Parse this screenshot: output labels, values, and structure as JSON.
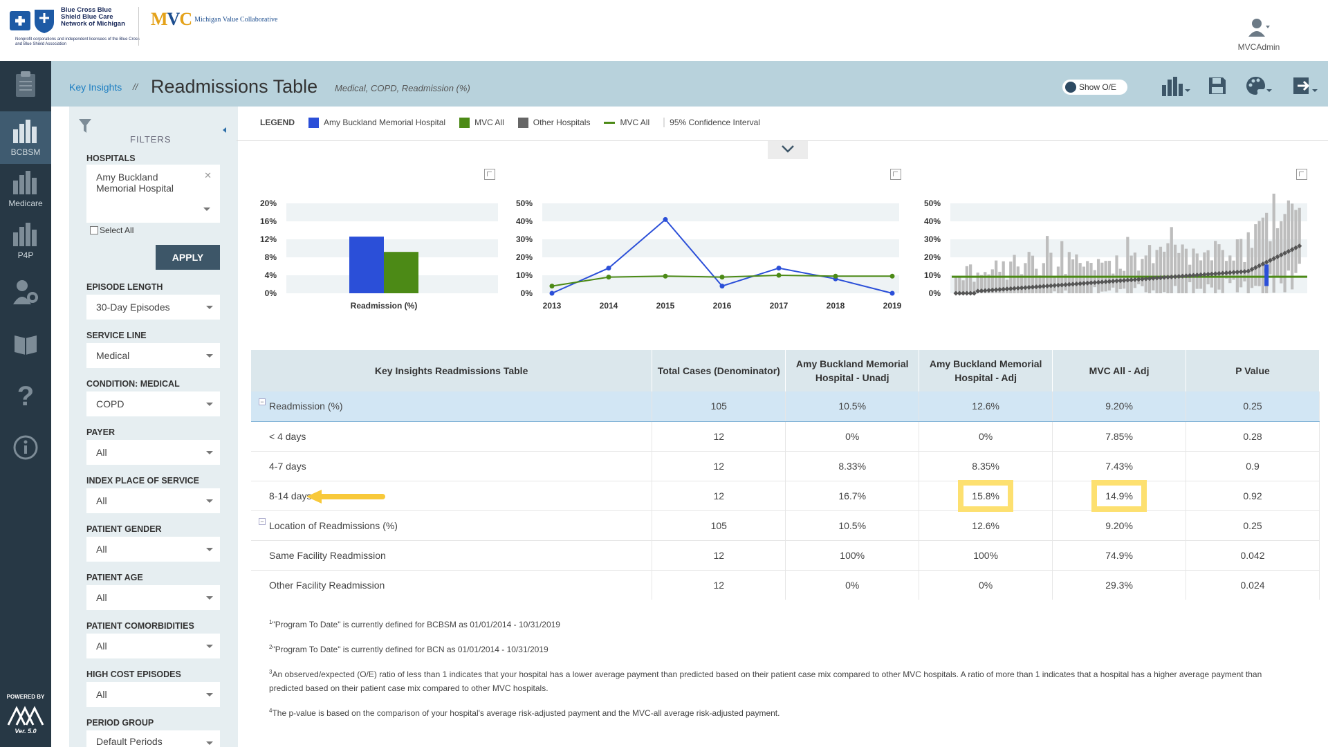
{
  "header": {
    "bcbs_text": "Blue Cross Blue Shield Blue Care Network of Michigan",
    "bcbs_fine": "Nonprofit corporations and independent licensees of the Blue Cross and Blue Shield Association",
    "mvc_sub": "Michigan Value Collaborative",
    "user": "MVCAdmin"
  },
  "sidebar": {
    "items": [
      {
        "label": "BCBSM",
        "icon": "bar-chart-icon"
      },
      {
        "label": "Medicare",
        "icon": "bar-chart-icon"
      },
      {
        "label": "P4P",
        "icon": "bar-chart-icon"
      },
      {
        "label": "",
        "icon": "settings-user-icon"
      },
      {
        "label": "",
        "icon": "book-icon"
      },
      {
        "label": "",
        "icon": "help-icon"
      },
      {
        "label": "",
        "icon": "info-icon"
      }
    ],
    "powered_by": "POWERED BY",
    "version": "Ver. 5.0"
  },
  "titlebar": {
    "breadcrumb": "Key Insights",
    "separator": "//",
    "title": "Readmissions Table",
    "subtitle": "Medical, COPD, Readmission (%)",
    "toggle_label": "Show O/E"
  },
  "filters": {
    "title": "FILTERS",
    "hospitals_label": "HOSPITALS",
    "hospital_value": "Amy Buckland Memorial Hospital",
    "select_all": "Select All",
    "apply": "APPLY",
    "fields": [
      {
        "label": "EPISODE LENGTH",
        "value": "30-Day Episodes"
      },
      {
        "label": "SERVICE LINE",
        "value": "Medical"
      },
      {
        "label": "CONDITION: MEDICAL",
        "value": "COPD"
      },
      {
        "label": "PAYER",
        "value": "All"
      },
      {
        "label": "INDEX PLACE OF SERVICE",
        "value": "All"
      },
      {
        "label": "PATIENT GENDER",
        "value": "All"
      },
      {
        "label": "PATIENT AGE",
        "value": "All"
      },
      {
        "label": "PATIENT COMORBIDITIES",
        "value": "All"
      },
      {
        "label": "HIGH COST EPISODES",
        "value": "All"
      },
      {
        "label": "PERIOD GROUP",
        "value": "Default Periods"
      }
    ]
  },
  "legend": {
    "title": "LEGEND",
    "items": [
      {
        "label": "Amy Buckland Memorial Hospital",
        "kind": "box",
        "color": "#2b4fd8"
      },
      {
        "label": "MVC All",
        "kind": "box",
        "color": "#4c8a16"
      },
      {
        "label": "Other Hospitals",
        "kind": "box",
        "color": "#666666"
      },
      {
        "label": "MVC All",
        "kind": "line",
        "color": "#4c8a16"
      },
      {
        "label": "95% Confidence Interval",
        "kind": "bar",
        "color": "#dddddd"
      }
    ]
  },
  "chart_data": [
    {
      "type": "bar",
      "categories": [
        "Readmission (%)"
      ],
      "series": [
        {
          "name": "Amy Buckland Memorial Hospital",
          "values": [
            12.6
          ],
          "color": "#2b4fd8"
        },
        {
          "name": "MVC All",
          "values": [
            9.2
          ],
          "color": "#4c8a16"
        }
      ],
      "yticks": [
        "20%",
        "16%",
        "12%",
        "8%",
        "4%",
        "0%"
      ],
      "ylim": [
        0,
        20
      ]
    },
    {
      "type": "line",
      "x": [
        "2013",
        "2014",
        "2015",
        "2016",
        "2017",
        "2018",
        "2019"
      ],
      "series": [
        {
          "name": "Amy Buckland Memorial Hospital",
          "values": [
            0,
            14,
            41,
            4,
            14,
            8,
            0
          ],
          "color": "#2b4fd8"
        },
        {
          "name": "MVC All",
          "values": [
            4,
            9,
            9.5,
            9,
            10,
            9.5,
            9.5
          ],
          "color": "#4c8a16"
        }
      ],
      "yticks": [
        "50%",
        "40%",
        "30%",
        "20%",
        "10%",
        "0%"
      ],
      "ylim": [
        0,
        50
      ]
    },
    {
      "type": "scatter",
      "description_values": "Caterpillar plot: sorted hospital readmission rates with 95% CI bars; MVC All line at ~9.2%",
      "mvc_all": 9.2,
      "highlight_value": 12.6,
      "yticks": [
        "50%",
        "40%",
        "30%",
        "20%",
        "10%",
        "0%"
      ],
      "ylim": [
        0,
        50
      ]
    }
  ],
  "table": {
    "headers": [
      "Key Insights Readmissions Table",
      "Total Cases (Denominator)",
      "Amy Buckland Memorial Hospital - Unadj",
      "Amy Buckland Memorial Hospital - Adj",
      "MVC All - Adj",
      "P Value"
    ],
    "rows": [
      {
        "label": "Readmission (%)",
        "group": true,
        "selected": true,
        "cells": [
          "105",
          "10.5%",
          "12.6%",
          "9.20%",
          "0.25"
        ]
      },
      {
        "label": "< 4 days",
        "cells": [
          "12",
          "0%",
          "0%",
          "7.85%",
          "0.28"
        ]
      },
      {
        "label": "4-7 days",
        "cells": [
          "12",
          "8.33%",
          "8.35%",
          "7.43%",
          "0.9"
        ]
      },
      {
        "label": "8-14 days",
        "highlight": true,
        "cells": [
          "12",
          "16.7%",
          "15.8%",
          "14.9%",
          "0.92"
        ]
      },
      {
        "label": "Location of Readmissions (%)",
        "group": true,
        "cells": [
          "105",
          "10.5%",
          "12.6%",
          "9.20%",
          "0.25"
        ]
      },
      {
        "label": "Same Facility Readmission",
        "cells": [
          "12",
          "100%",
          "100%",
          "74.9%",
          "0.042"
        ]
      },
      {
        "label": "Other Facility Readmission",
        "cells": [
          "12",
          "0%",
          "0%",
          "29.3%",
          "0.024"
        ]
      }
    ]
  },
  "footnotes": [
    {
      "sup": "1",
      "text": "\"Program To Date\" is currently defined for BCBSM as 01/01/2014 - 10/31/2019"
    },
    {
      "sup": "2",
      "text": "\"Program To Date\" is currently defined for BCN as 01/01/2014 - 10/31/2019"
    },
    {
      "sup": "3",
      "text": "An observed/expected (O/E) ratio of less than 1 indicates that your hospital has a lower average payment than predicted based on their patient case mix compared to other MVC hospitals. A ratio of more than 1 indicates that a hospital has a higher average payment than predicted based on their patient case mix compared to other MVC hospitals."
    },
    {
      "sup": "4",
      "text": "The p-value is based on the comparison of your hospital's average risk-adjusted payment and the MVC-all average risk-adjusted payment."
    }
  ]
}
